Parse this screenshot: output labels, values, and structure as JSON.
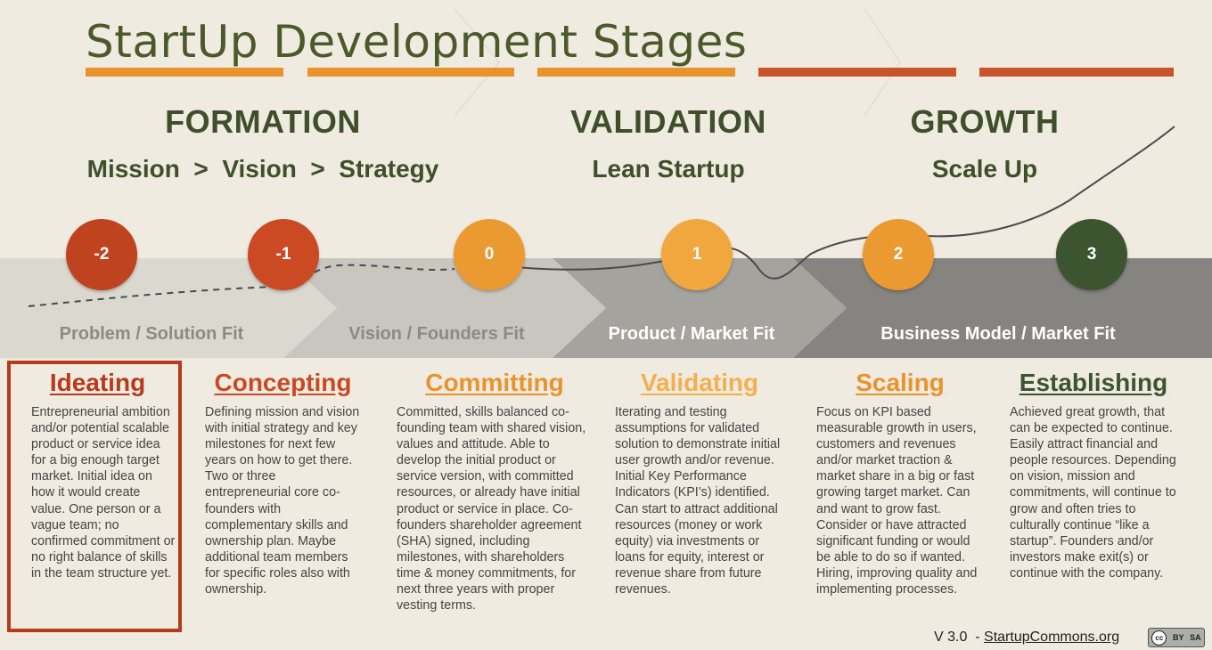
{
  "title": "StartUp Development Stages",
  "colors": {
    "background": "#efebe1",
    "title_green": "#4a5a2a",
    "heading_green": "#3e4f2a",
    "red": "#c0431f",
    "orange": "#e9932c",
    "light_orange": "#f2b04e",
    "dark_green": "#3d5431"
  },
  "phases": [
    {
      "name": "FORMATION",
      "subtitle": "Mission  >  Vision  >  Strategy"
    },
    {
      "name": "VALIDATION",
      "subtitle": "Lean Startup"
    },
    {
      "name": "GROWTH",
      "subtitle": "Scale Up"
    }
  ],
  "stage_numbers": [
    "-2",
    "-1",
    "0",
    "1",
    "2",
    "3"
  ],
  "fits": [
    "Problem / Solution Fit",
    "Vision / Founders Fit",
    "Product / Market Fit",
    "Business Model / Market Fit"
  ],
  "stages": [
    {
      "name": "Ideating",
      "description": "Entrepreneurial ambition and/or potential scalable product or service idea for a big enough target market. Initial idea on how it would create value. One person or a vague team; no confirmed commitment or no right balance of skills in the team structure yet."
    },
    {
      "name": "Concepting",
      "description": "Defining mission and vision with initial strategy and key milestones for next few years on how to get there. Two or three entrepreneurial core co-founders with complementary skills and ownership plan. Maybe additional team members for specific roles also with ownership."
    },
    {
      "name": "Committing",
      "description": "Committed, skills balanced co-founding team with shared vision, values and attitude. Able to develop the initial product or service version, with committed resources, or already have initial product or service in place. Co-founders shareholder agreement (SHA) signed, including milestones, with shareholders time & money commitments, for next three years with proper vesting terms."
    },
    {
      "name": "Validating",
      "description": "Iterating and testing assumptions for validated solution to demonstrate initial user growth and/or revenue. Initial Key Performance Indicators (KPI’s) identified. Can start to attract additional resources (money or work equity) via investments or loans for equity, interest or revenue share from future revenues."
    },
    {
      "name": "Scaling",
      "description": "Focus on KPI based measurable growth in users, customers and revenues and/or market traction & market share in a big or fast growing target market. Can and want to grow fast. Consider or have attracted significant funding or would be able to do so if wanted. Hiring, improving quality and implementing processes."
    },
    {
      "name": "Establishing",
      "description": "Achieved great growth, that can be expected to continue. Easily attract financial and people resources. Depending on vision, mission and commitments, will continue to grow and often tries to culturally continue “like a startup”. Founders and/or investors make exit(s) or continue with the company."
    }
  ],
  "footer": {
    "version": "V 3.0  - ",
    "link": "StartupCommons.org",
    "license": [
      "cc",
      "BY",
      "SA"
    ]
  }
}
